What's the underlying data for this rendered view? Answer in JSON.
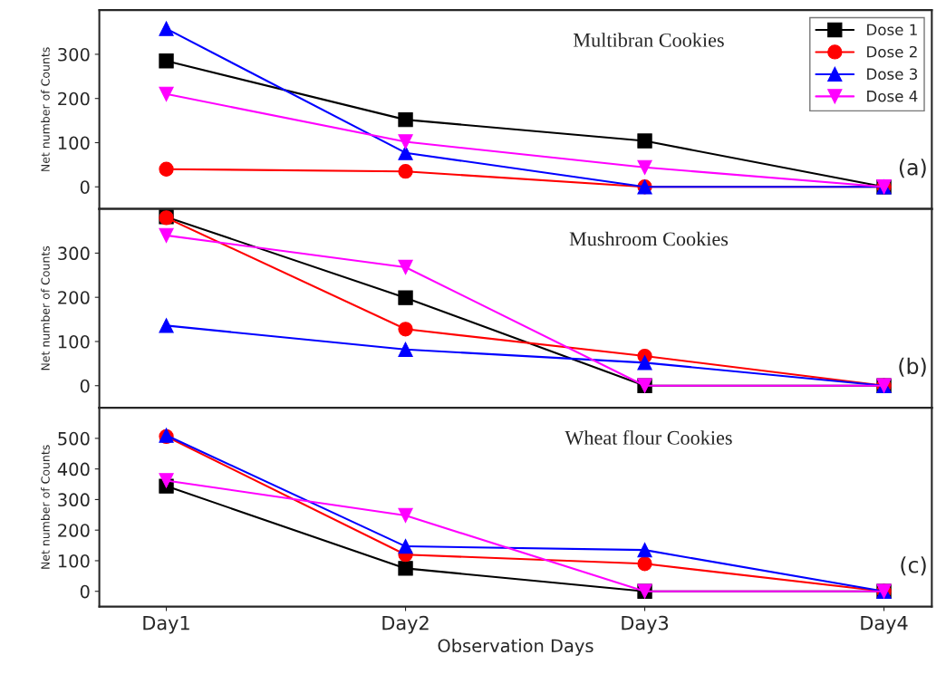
{
  "chart_data": [
    {
      "type": "line",
      "title": "Multibran Cookies",
      "ylabel": "Net number of Counts",
      "categories": [
        null,
        null,
        null,
        null
      ],
      "ylim": [
        -50,
        400
      ],
      "yticks": [
        0,
        100,
        200,
        300
      ],
      "tick_labels": "y",
      "legend": "top right",
      "annotations": [
        "(a)"
      ],
      "series": [
        {
          "name": "Dose 1",
          "color": "#000000",
          "marker": "square",
          "values": [
            285,
            152,
            104,
            0
          ]
        },
        {
          "name": "Dose 2",
          "color": "#ff0000",
          "marker": "circle",
          "values": [
            40,
            35,
            0,
            0
          ]
        },
        {
          "name": "Dose 3",
          "color": "#0000ff",
          "marker": "triangle",
          "values": [
            358,
            77,
            0,
            0
          ]
        },
        {
          "name": "Dose 4",
          "color": "#ff00ff",
          "marker": "triangle-down",
          "values": [
            210,
            102,
            44,
            0
          ]
        }
      ]
    },
    {
      "type": "line",
      "title": "Mushroom Cookies",
      "ylabel": "Net number of Counts",
      "categories": [
        null,
        null,
        null,
        null
      ],
      "ylim": [
        -50,
        400
      ],
      "yticks": [
        0,
        100,
        200,
        300
      ],
      "tick_labels": "y",
      "annotations": [
        "(b)"
      ],
      "series": [
        {
          "color": "#000000",
          "marker": "square",
          "values": [
            382,
            199,
            0,
            0
          ]
        },
        {
          "color": "#ff0000",
          "marker": "circle",
          "values": [
            380,
            128,
            67,
            0
          ]
        },
        {
          "color": "#0000ff",
          "marker": "triangle",
          "values": [
            136,
            82,
            52,
            0
          ]
        },
        {
          "color": "#ff00ff",
          "marker": "triangle-down",
          "values": [
            340,
            268,
            0,
            0
          ]
        }
      ]
    },
    {
      "type": "line",
      "title": "Wheat flour Cookies",
      "ylabel": "Net number of Counts",
      "xlabel": "Observation Days",
      "categories": [
        "Day1",
        "Day2",
        "Day3",
        "Day4"
      ],
      "ylim": [
        -50,
        600
      ],
      "yticks": [
        0,
        100,
        200,
        300,
        400,
        500
      ],
      "annotations": [
        "(c)"
      ],
      "series": [
        {
          "color": "#000000",
          "marker": "square",
          "values": [
            344,
            75,
            0,
            0
          ]
        },
        {
          "color": "#ff0000",
          "marker": "circle",
          "values": [
            506,
            120,
            90,
            0
          ]
        },
        {
          "color": "#0000ff",
          "marker": "triangle",
          "values": [
            510,
            147,
            135,
            0
          ]
        },
        {
          "color": "#ff00ff",
          "marker": "triangle-down",
          "values": [
            362,
            248,
            0,
            0
          ]
        }
      ]
    }
  ]
}
